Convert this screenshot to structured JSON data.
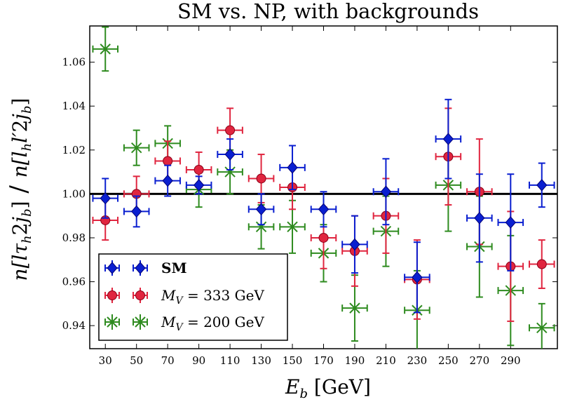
{
  "chart_data": {
    "type": "scatter",
    "title": "SM vs. NP, with backgrounds",
    "xlabel": "E_b [GeV]",
    "ylabel": "n[l τ_h 2 j_b] / n[l_h l′ 2 j_b]",
    "xlim": [
      20,
      320
    ],
    "ylim": [
      0.9295,
      1.0765
    ],
    "x_ticks": [
      30,
      50,
      70,
      90,
      110,
      130,
      150,
      170,
      190,
      210,
      230,
      250,
      270,
      290
    ],
    "y_ticks": [
      0.94,
      0.96,
      0.98,
      1.0,
      1.02,
      1.04,
      1.06
    ],
    "y_tick_labels": [
      "0.94",
      "0.96",
      "0.98",
      "1.00",
      "1.02",
      "1.04",
      "1.06"
    ],
    "reference_line": 1.0,
    "grid": false,
    "legend_position": "lower-left",
    "series": [
      {
        "name": "SM",
        "marker": "diamond",
        "color": "#0a1fd0",
        "edge": "#00007a",
        "x_offset": 0,
        "x_half_width": 8,
        "x": [
          30,
          50,
          70,
          90,
          110,
          130,
          150,
          170,
          190,
          210,
          230,
          250,
          270,
          290,
          310
        ],
        "y": [
          0.998,
          0.992,
          1.006,
          1.004,
          1.018,
          0.993,
          1.012,
          0.993,
          0.977,
          1.001,
          0.962,
          1.025,
          0.989,
          0.987,
          1.004
        ],
        "yerr": [
          0.009,
          0.007,
          0.007,
          0.004,
          0.007,
          0.007,
          0.01,
          0.008,
          0.013,
          0.015,
          0.016,
          0.018,
          0.02,
          0.022,
          0.01
        ]
      },
      {
        "name": "M_V = 333 GeV",
        "marker": "circle",
        "color": "#e0253f",
        "edge": "#8a0018",
        "x_offset": 0,
        "x_half_width": 8,
        "x": [
          30,
          50,
          70,
          90,
          110,
          130,
          150,
          170,
          190,
          210,
          230,
          250,
          270,
          290,
          310
        ],
        "y": [
          0.988,
          1.0,
          1.015,
          1.011,
          1.029,
          1.007,
          1.003,
          0.98,
          0.974,
          0.99,
          0.961,
          1.017,
          1.001,
          0.967,
          0.968
        ],
        "yerr": [
          0.009,
          0.008,
          0.009,
          0.008,
          0.01,
          0.011,
          0.01,
          0.014,
          0.016,
          0.017,
          0.018,
          0.022,
          0.024,
          0.025,
          0.011
        ]
      },
      {
        "name": "M_V = 200 GeV",
        "marker": "x",
        "color": "#2e8b1f",
        "edge": "#1c6610",
        "x_offset": 0,
        "x_half_width": 8,
        "x": [
          30,
          50,
          70,
          90,
          110,
          130,
          150,
          170,
          190,
          210,
          230,
          250,
          270,
          290,
          310
        ],
        "y": [
          1.066,
          1.021,
          1.023,
          1.002,
          1.01,
          0.985,
          0.985,
          0.973,
          0.948,
          0.983,
          0.947,
          1.004,
          0.976,
          0.956,
          0.939
        ],
        "yerr": [
          0.01,
          0.008,
          0.008,
          0.008,
          0.01,
          0.01,
          0.012,
          0.013,
          0.015,
          0.016,
          0.018,
          0.021,
          0.023,
          0.025,
          0.011
        ]
      }
    ],
    "legend": [
      {
        "label_bold": "SM",
        "label": ""
      },
      {
        "label_bold": "",
        "label": "M_V = 333 GeV"
      },
      {
        "label_bold": "",
        "label": "M_V = 200 GeV"
      }
    ]
  }
}
